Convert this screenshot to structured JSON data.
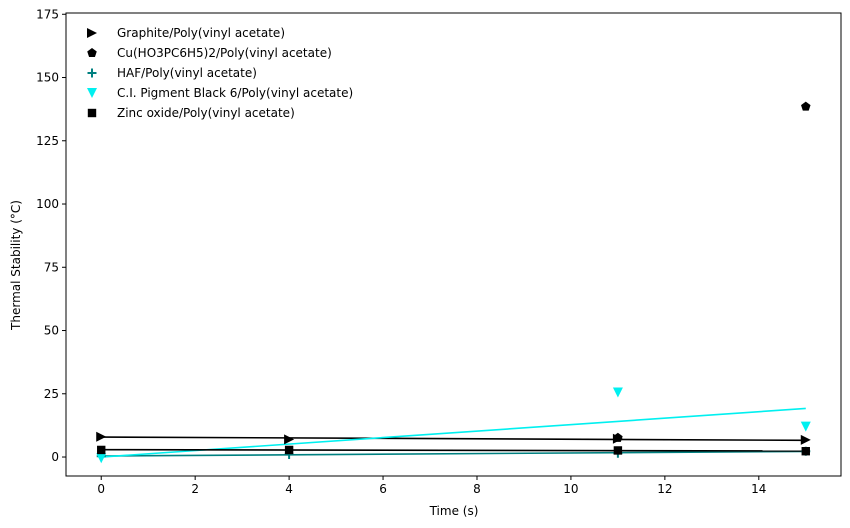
{
  "chart_data": {
    "type": "scatter",
    "title": "",
    "xlabel": "Time (s)",
    "ylabel": "Thermal Stability (°C)",
    "xlim": [
      -0.75,
      15.75
    ],
    "ylim": [
      -7.5,
      175.5
    ],
    "xticks": [
      0,
      2,
      4,
      6,
      8,
      10,
      12,
      14
    ],
    "yticks": [
      0,
      25,
      50,
      75,
      100,
      125,
      150,
      175
    ],
    "grid": false,
    "legend_position": "upper-left",
    "series": [
      {
        "name": "Graphite/Poly(vinyl acetate)",
        "marker": "triangle-right",
        "color": "#000000",
        "points": [
          [
            0,
            8.0
          ],
          [
            4,
            7.0
          ],
          [
            11,
            7.2
          ],
          [
            15,
            6.8
          ]
        ],
        "trend": [
          [
            0,
            7.9
          ],
          [
            15,
            6.6
          ]
        ]
      },
      {
        "name": "Cu(HO3PC6H5)2/Poly(vinyl acetate)",
        "marker": "pentagon",
        "color": "#000000",
        "points": [
          [
            11,
            7.6
          ],
          [
            15,
            138.5
          ]
        ],
        "trend": null
      },
      {
        "name": "HAF/Poly(vinyl acetate)",
        "marker": "plus",
        "color": "#008080",
        "points": [
          [
            0,
            0.3
          ],
          [
            4,
            1.0
          ],
          [
            11,
            1.5
          ],
          [
            15,
            2.3
          ]
        ],
        "trend": [
          [
            0,
            0.4
          ],
          [
            15,
            2.2
          ]
        ]
      },
      {
        "name": "C.I. Pigment Black 6/Poly(vinyl acetate)",
        "marker": "triangle-down",
        "color": "#00f0f0",
        "points": [
          [
            0,
            -0.5
          ],
          [
            11,
            25.5
          ],
          [
            15,
            12.0
          ]
        ],
        "trend": [
          [
            0,
            0.0
          ],
          [
            15,
            19.2
          ]
        ]
      },
      {
        "name": "Zinc oxide/Poly(vinyl acetate)",
        "marker": "square",
        "color": "#000000",
        "points": [
          [
            0,
            2.8
          ],
          [
            4,
            2.8
          ],
          [
            11,
            2.6
          ],
          [
            15,
            2.3
          ]
        ],
        "trend": [
          [
            0,
            2.9
          ],
          [
            15,
            2.4
          ]
        ]
      }
    ]
  }
}
